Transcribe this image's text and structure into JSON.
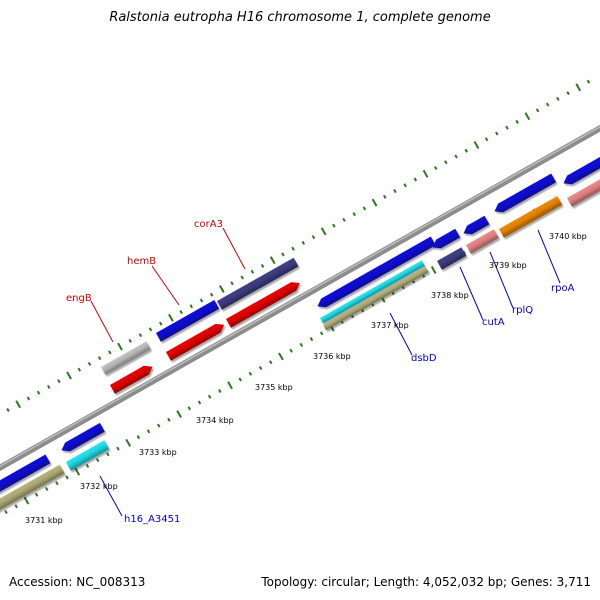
{
  "title": "Ralstonia eutropha H16 chromosome 1, complete genome",
  "footer": {
    "accession": "Accession: NC_008313",
    "topology": "Topology: circular; Length: 4,052,032 bp; Genes: 3,711"
  },
  "colors": {
    "backbone": "#8c8c8c",
    "tick": "#2a7a1e",
    "forward_label": "#cc0000",
    "reverse_label": "#0000cc",
    "blue": "#1010e0",
    "red": "#ee0000",
    "slate": "#404088",
    "grey": "#c4c4c4",
    "cyan": "#22e6f0",
    "olive": "#b8b47a",
    "pink": "#ee8a8a",
    "orange": "#f08c00"
  },
  "kbp_labels": [
    "3731 kbp",
    "3732 kbp",
    "3733 kbp",
    "3734 kbp",
    "3735 kbp",
    "3736 kbp",
    "3737 kbp",
    "3738 kbp",
    "3739 kbp",
    "3740 kbp"
  ],
  "gene_labels_forward": [
    "engB",
    "hemB",
    "corA3"
  ],
  "gene_labels_reverse": [
    "h16_A3451",
    "dsbD",
    "cutA",
    "rplQ",
    "rpoA"
  ]
}
